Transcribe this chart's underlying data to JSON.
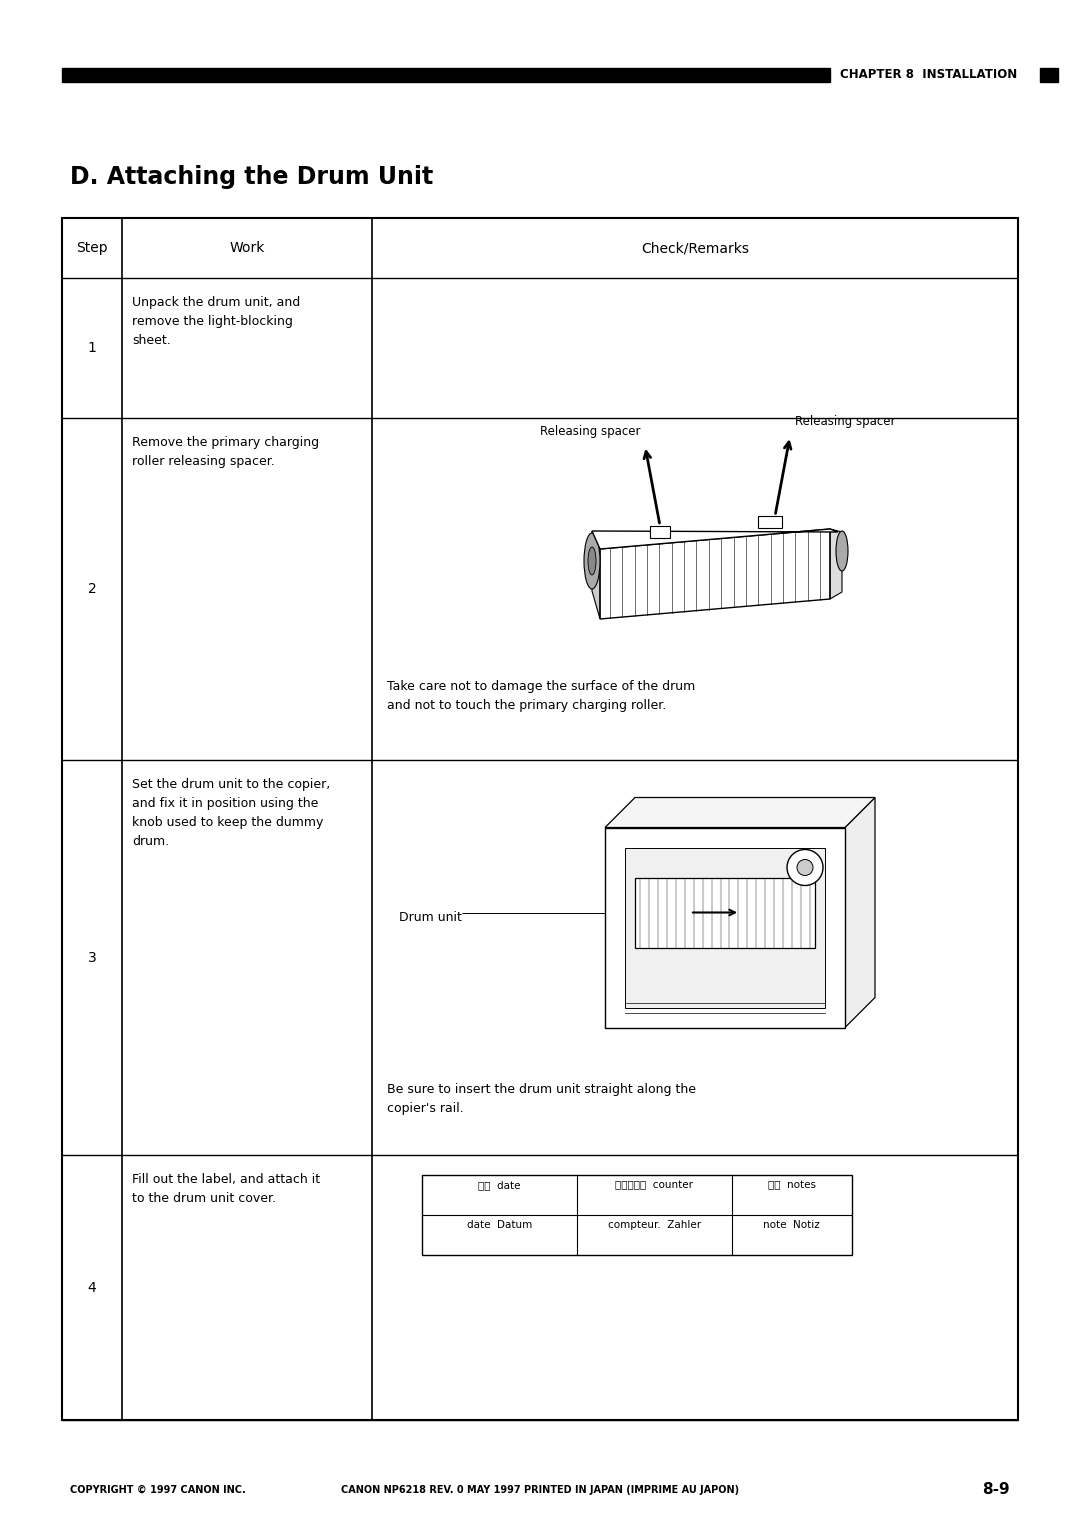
{
  "page_width": 10.8,
  "page_height": 15.28,
  "bg_color": "#ffffff",
  "header_bar_color": "#000000",
  "header_text": "CHAPTER 8  INSTALLATION",
  "section_title": "D. Attaching the Drum Unit",
  "footer_left": "COPYRIGHT © 1997 CANON INC.",
  "footer_center": "CANON NP6218 REV. 0 MAY 1997 PRINTED IN JAPAN (IMPRIME AU JAPON)",
  "footer_right": "8-9",
  "col_headers": [
    "Step",
    "Work",
    "Check/Remarks"
  ],
  "row1_work": "Unpack the drum unit, and\nremove the light-blocking\nsheet.",
  "row2_work": "Remove the primary charging\nroller releasing spacer.",
  "row2_check": "Take care not to damage the surface of the drum\nand not to touch the primary charging roller.",
  "row3_work": "Set the drum unit to the copier,\nand fix it in position using the\nknob used to keep the dummy\ndrum.",
  "row3_check": "Be sure to insert the drum unit straight along the\ncopier's rail.",
  "row4_work": "Fill out the label, and attach it\nto the drum unit cover.",
  "label_row1_c1": "日付  date",
  "label_row1_c2": "カウンター  counter",
  "label_row1_c3": "備考  notes",
  "label_row2_c1": "date  Datum",
  "label_row2_c2": "compteur.  Zahler",
  "label_row2_c3": "note  Notiz"
}
